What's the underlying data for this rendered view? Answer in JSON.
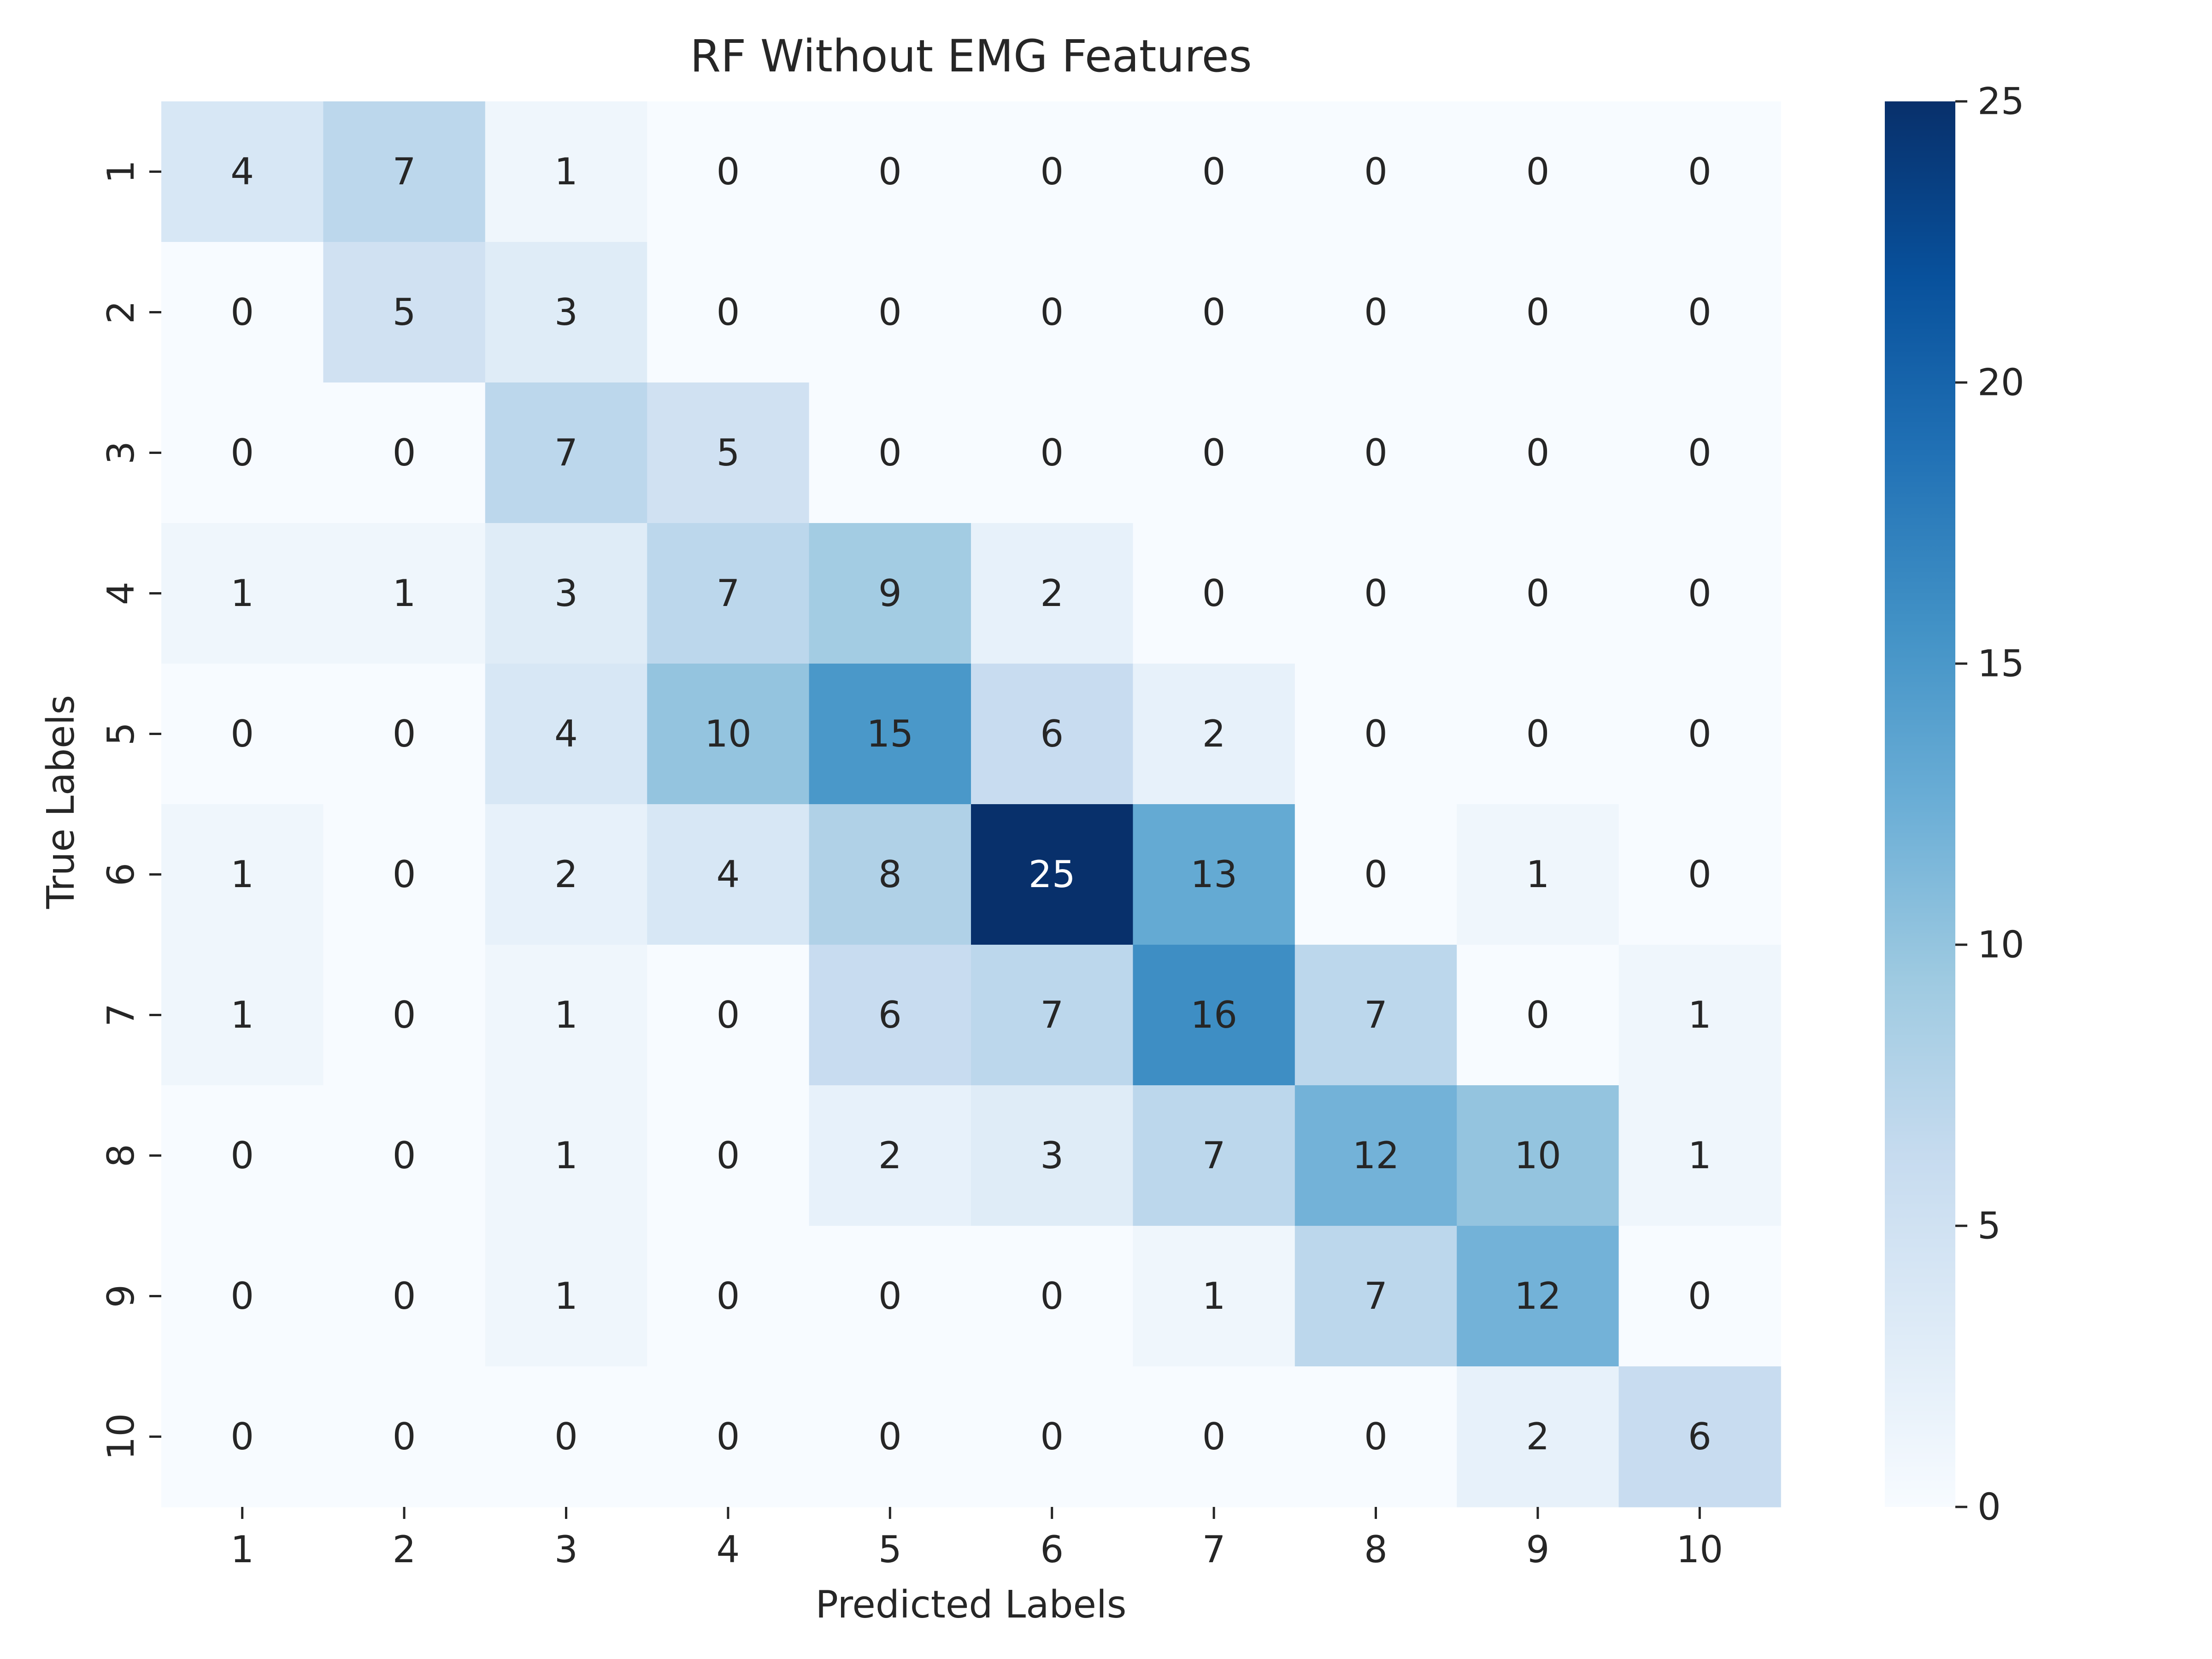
{
  "chart_data": {
    "type": "heatmap",
    "title": "RF Without EMG Features",
    "xlabel": "Predicted Labels",
    "ylabel": "True Labels",
    "x_categories": [
      "1",
      "2",
      "3",
      "4",
      "5",
      "6",
      "7",
      "8",
      "9",
      "10"
    ],
    "y_categories": [
      "1",
      "2",
      "3",
      "4",
      "5",
      "6",
      "7",
      "8",
      "9",
      "10"
    ],
    "values": [
      [
        4,
        7,
        1,
        0,
        0,
        0,
        0,
        0,
        0,
        0
      ],
      [
        0,
        5,
        3,
        0,
        0,
        0,
        0,
        0,
        0,
        0
      ],
      [
        0,
        0,
        7,
        5,
        0,
        0,
        0,
        0,
        0,
        0
      ],
      [
        1,
        1,
        3,
        7,
        9,
        2,
        0,
        0,
        0,
        0
      ],
      [
        0,
        0,
        4,
        10,
        15,
        6,
        2,
        0,
        0,
        0
      ],
      [
        1,
        0,
        2,
        4,
        8,
        25,
        13,
        0,
        1,
        0
      ],
      [
        1,
        0,
        1,
        0,
        6,
        7,
        16,
        7,
        0,
        1
      ],
      [
        0,
        0,
        1,
        0,
        2,
        3,
        7,
        12,
        10,
        1
      ],
      [
        0,
        0,
        1,
        0,
        0,
        0,
        1,
        7,
        12,
        0
      ],
      [
        0,
        0,
        0,
        0,
        0,
        0,
        0,
        0,
        2,
        6
      ]
    ],
    "colorscale": "Blues",
    "vmin": 0,
    "vmax": 25,
    "colorbar": {
      "ticks": [
        "0",
        "5",
        "10",
        "15",
        "20",
        "25"
      ],
      "placement": "right"
    },
    "colors": {
      "low": "#f7fbff",
      "high": "#08306b",
      "text_dark": "#262626",
      "text_light": "#ffffff"
    }
  }
}
